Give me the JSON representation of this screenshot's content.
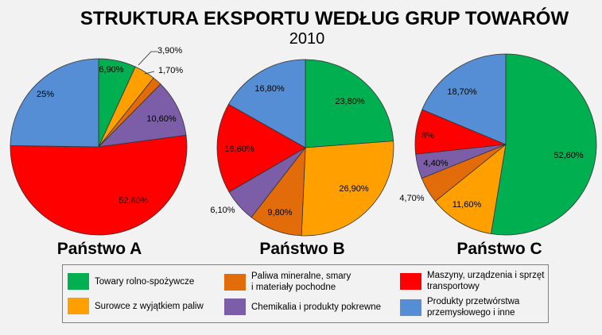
{
  "chart_data": {
    "title": "STRUKTURA EKSPORTU WEDŁUG GRUP TOWARÓW",
    "subtitle": "2010",
    "type": "pie",
    "categories": [
      "Towary rolno-spożywcze",
      "Surowce z wyjątkiem paliw",
      "Paliwa mineralne, smary i materiały pochodne",
      "Chemikalia i produkty pokrewne",
      "Maszyny, urządzenia i sprzęt transportowy",
      "Produkty przetwórstwa przemysłowego i inne"
    ],
    "colors": [
      "#00b050",
      "#ffa000",
      "#e36c0a",
      "#7b5ea7",
      "#ff0000",
      "#558ed5"
    ],
    "charts": [
      {
        "name": "Państwo A",
        "values": [
          6.9,
          3.9,
          1.7,
          10.6,
          52.8,
          25.0
        ],
        "labels": [
          "6,90%",
          "3,90%",
          "1,70%",
          "10,60%",
          "52,80%",
          "25%"
        ]
      },
      {
        "name": "Państwo B",
        "values": [
          23.8,
          26.9,
          9.8,
          6.1,
          16.6,
          16.8
        ],
        "labels": [
          "23,80%",
          "26,90%",
          "9,80%",
          "6,10%",
          "16,60%",
          "16,80%"
        ]
      },
      {
        "name": "Państwo C",
        "values": [
          52.6,
          11.6,
          4.7,
          4.4,
          8.0,
          18.7
        ],
        "labels": [
          "52,60%",
          "11,60%",
          "4,70%",
          "4,40%",
          "8%",
          "18,70%"
        ]
      }
    ],
    "legend": {
      "position": "bottom",
      "items": [
        {
          "label": "Towary rolno-spożywcze",
          "color": "#00b050"
        },
        {
          "label": "Paliwa mineralne, smary\ni materiały pochodne",
          "color": "#e36c0a"
        },
        {
          "label": "Maszyny, urządzenia i sprzęt\ntransportowy",
          "color": "#ff0000"
        },
        {
          "label": "Surowce z wyjątkiem paliw",
          "color": "#ffa000"
        },
        {
          "label": "Chemikalia i produkty pokrewne",
          "color": "#7b5ea7"
        },
        {
          "label": "Produkty przetwórstwa\nprzemysłowego i inne",
          "color": "#558ed5"
        }
      ]
    }
  }
}
